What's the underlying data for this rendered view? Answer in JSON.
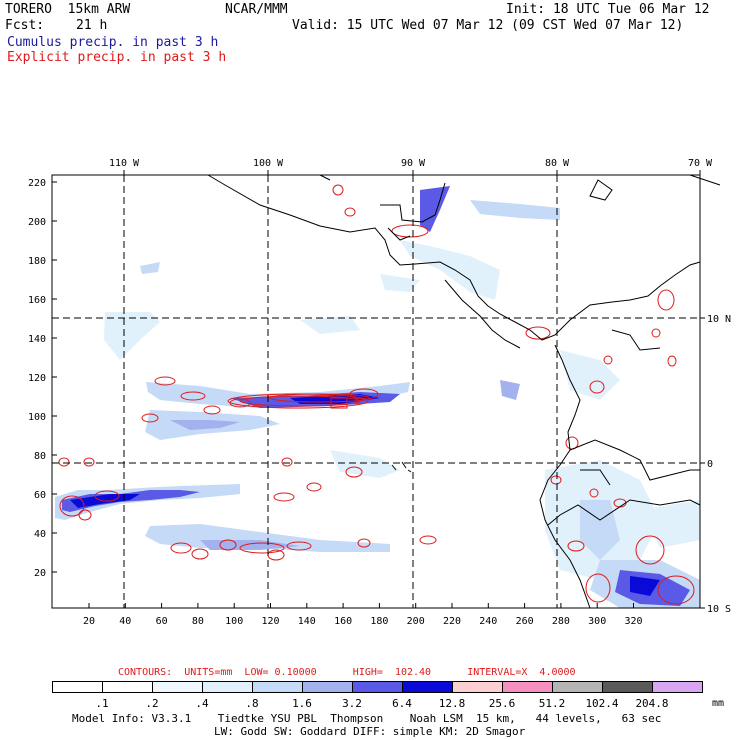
{
  "header": {
    "model": "TORERO  15km ARW",
    "org": "NCAR/MMM",
    "init": "Init: 18 UTC Tue 06 Mar 12",
    "fcst_label": "Fcst:",
    "fcst_value": "21 h",
    "valid": "Valid: 15 UTC Wed 07 Mar 12 (09 CST Wed 07 Mar 12)",
    "field1": "Cumulus precip. in past 3 h",
    "field2": "Explicit precip. in past 3 h"
  },
  "colors": {
    "field1": "#1a1aa0",
    "field2": "#e01a1a",
    "coast": "#000000",
    "grid": "#000000"
  },
  "axes": {
    "top_lon_labels": [
      "110 W",
      "100 W",
      "90 W",
      "80 W",
      "70 W"
    ],
    "right_lat_labels": [
      "10 N",
      "0",
      "10 S"
    ],
    "y_ticks": [
      "220",
      "200",
      "180",
      "160",
      "140",
      "120",
      "100",
      "80",
      "60",
      "40",
      "20"
    ],
    "x_ticks": [
      "20",
      "40",
      "60",
      "80",
      "100",
      "120",
      "140",
      "160",
      "180",
      "200",
      "220",
      "240",
      "260",
      "280",
      "300",
      "320"
    ]
  },
  "contours": {
    "text": "CONTOURS:  UNITS=mm  LOW= 0.10000      HIGH=  102.40      INTERVAL=X  4.0000"
  },
  "colorbar": {
    "labels": [
      ".1",
      ".2",
      ".4",
      ".8",
      "1.6",
      "3.2",
      "6.4",
      "12.8",
      "25.6",
      "51.2",
      "102.4",
      "204.8"
    ],
    "units": "mm",
    "colors": [
      "#ffffff",
      "#ffffff",
      "#f0f8ff",
      "#e1f1fb",
      "#c4daf6",
      "#a3b1ef",
      "#5a5ae6",
      "#0a0ad8",
      "#fccfd2",
      "#f590be",
      "#b5b5b5",
      "#5a5a5a",
      "#d9a6f2"
    ]
  },
  "footer": {
    "line1": "Model Info: V3.3.1    Tiedtke YSU PBL  Thompson    Noah LSM  15 km,   44 levels,   63 sec",
    "line2": "LW: Godd SW: Goddard DIFF: simple KM: 2D Smagor"
  }
}
